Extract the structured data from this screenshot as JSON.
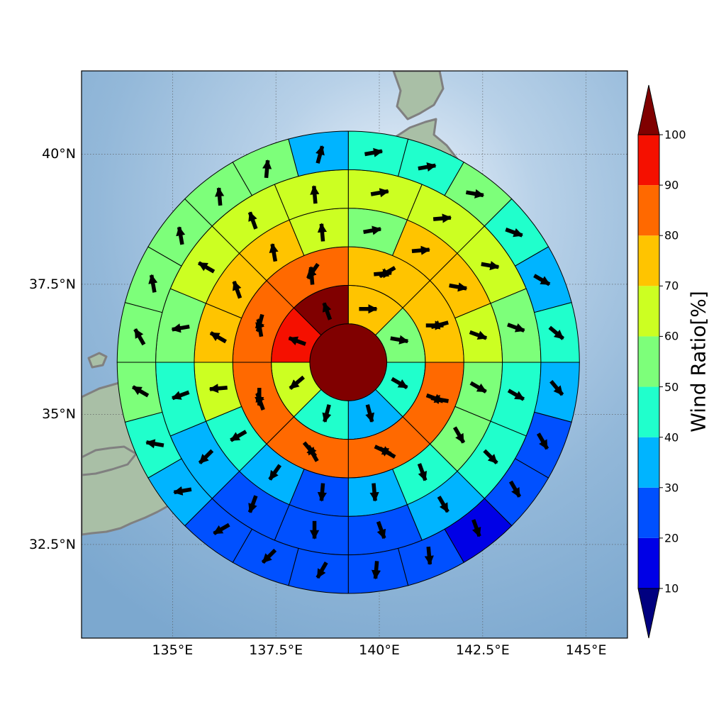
{
  "map": {
    "lon_range": [
      132.8,
      146.0
    ],
    "lat_range": [
      30.7,
      41.6
    ],
    "x_ticks": [
      {
        "value": 135.0,
        "label": "135°E"
      },
      {
        "value": 137.5,
        "label": "137.5°E"
      },
      {
        "value": 140.0,
        "label": "140°E"
      },
      {
        "value": 142.5,
        "label": "142.5°E"
      },
      {
        "value": 145.0,
        "label": "145°E"
      }
    ],
    "y_ticks": [
      {
        "value": 40.0,
        "label": "40°N"
      },
      {
        "value": 37.5,
        "label": "37.5°N"
      },
      {
        "value": 35.0,
        "label": "35°N"
      },
      {
        "value": 32.5,
        "label": "32.5°N"
      }
    ],
    "coastline_color": "#808080",
    "grid": true
  },
  "colorbar": {
    "title": "Wind Ratio[%]",
    "boundaries": [
      10,
      20,
      30,
      40,
      50,
      60,
      70,
      80,
      90,
      100
    ],
    "tick_labels": [
      "10",
      "20",
      "30",
      "40",
      "50",
      "60",
      "70",
      "80",
      "90",
      "100"
    ],
    "colors": [
      "#0000e6",
      "#0050ff",
      "#00b4ff",
      "#20ffcc",
      "#7dff7a",
      "#ccff22",
      "#ffc400",
      "#ff6900",
      "#f51000"
    ],
    "under_color": "#000080",
    "over_color": "#800000",
    "extend": "both"
  },
  "chart_data": {
    "type": "polar-sector-grid",
    "center": {
      "lon": 139.25,
      "lat": 36.0
    },
    "ring_edges_km": [
      0,
      50,
      100,
      150,
      200,
      250,
      300
    ],
    "sectors_per_ring": [
      1,
      8,
      8,
      16,
      16,
      24
    ],
    "sector_origin": "north, clockwise",
    "ring_values": [
      [
        100
      ],
      [
        72,
        58,
        42,
        38,
        42,
        62,
        92,
        100
      ],
      [
        72,
        72,
        62,
        60,
        48,
        42,
        42,
        70,
        75,
        75,
        82,
        85,
        86,
        88,
        88,
        88
      ],
      [
        52,
        72,
        72,
        65,
        55,
        52,
        42,
        32,
        28,
        35,
        48,
        62,
        75,
        78,
        78,
        68
      ],
      [
        62,
        63,
        63,
        55,
        45,
        40,
        35,
        22,
        22,
        22,
        30,
        40,
        55,
        62,
        62,
        60
      ],
      [
        42,
        43,
        52,
        48,
        32,
        42,
        32,
        22,
        22,
        18,
        22,
        22,
        22,
        22,
        28,
        32,
        48,
        55,
        52,
        52,
        58,
        55,
        55,
        32
      ]
    ],
    "ring_directions_deg": [
      [
        0
      ],
      [
        90,
        100,
        120,
        165,
        195,
        230,
        290,
        340
      ],
      [
        85,
        90,
        110,
        115,
        140,
        180,
        195,
        215,
        240,
        255,
        280,
        300,
        330,
        340,
        350,
        355
      ],
      [
        80,
        85,
        100,
        110,
        120,
        150,
        160,
        175,
        185,
        215,
        240,
        265,
        300,
        340,
        350,
        355
      ],
      [
        80,
        85,
        100,
        110,
        120,
        135,
        150,
        160,
        180,
        200,
        225,
        250,
        260,
        300,
        340,
        355
      ],
      [
        80,
        80,
        100,
        110,
        120,
        130,
        140,
        150,
        150,
        160,
        175,
        185,
        210,
        225,
        240,
        260,
        280,
        300,
        330,
        350,
        350,
        355,
        5,
        15
      ]
    ]
  }
}
